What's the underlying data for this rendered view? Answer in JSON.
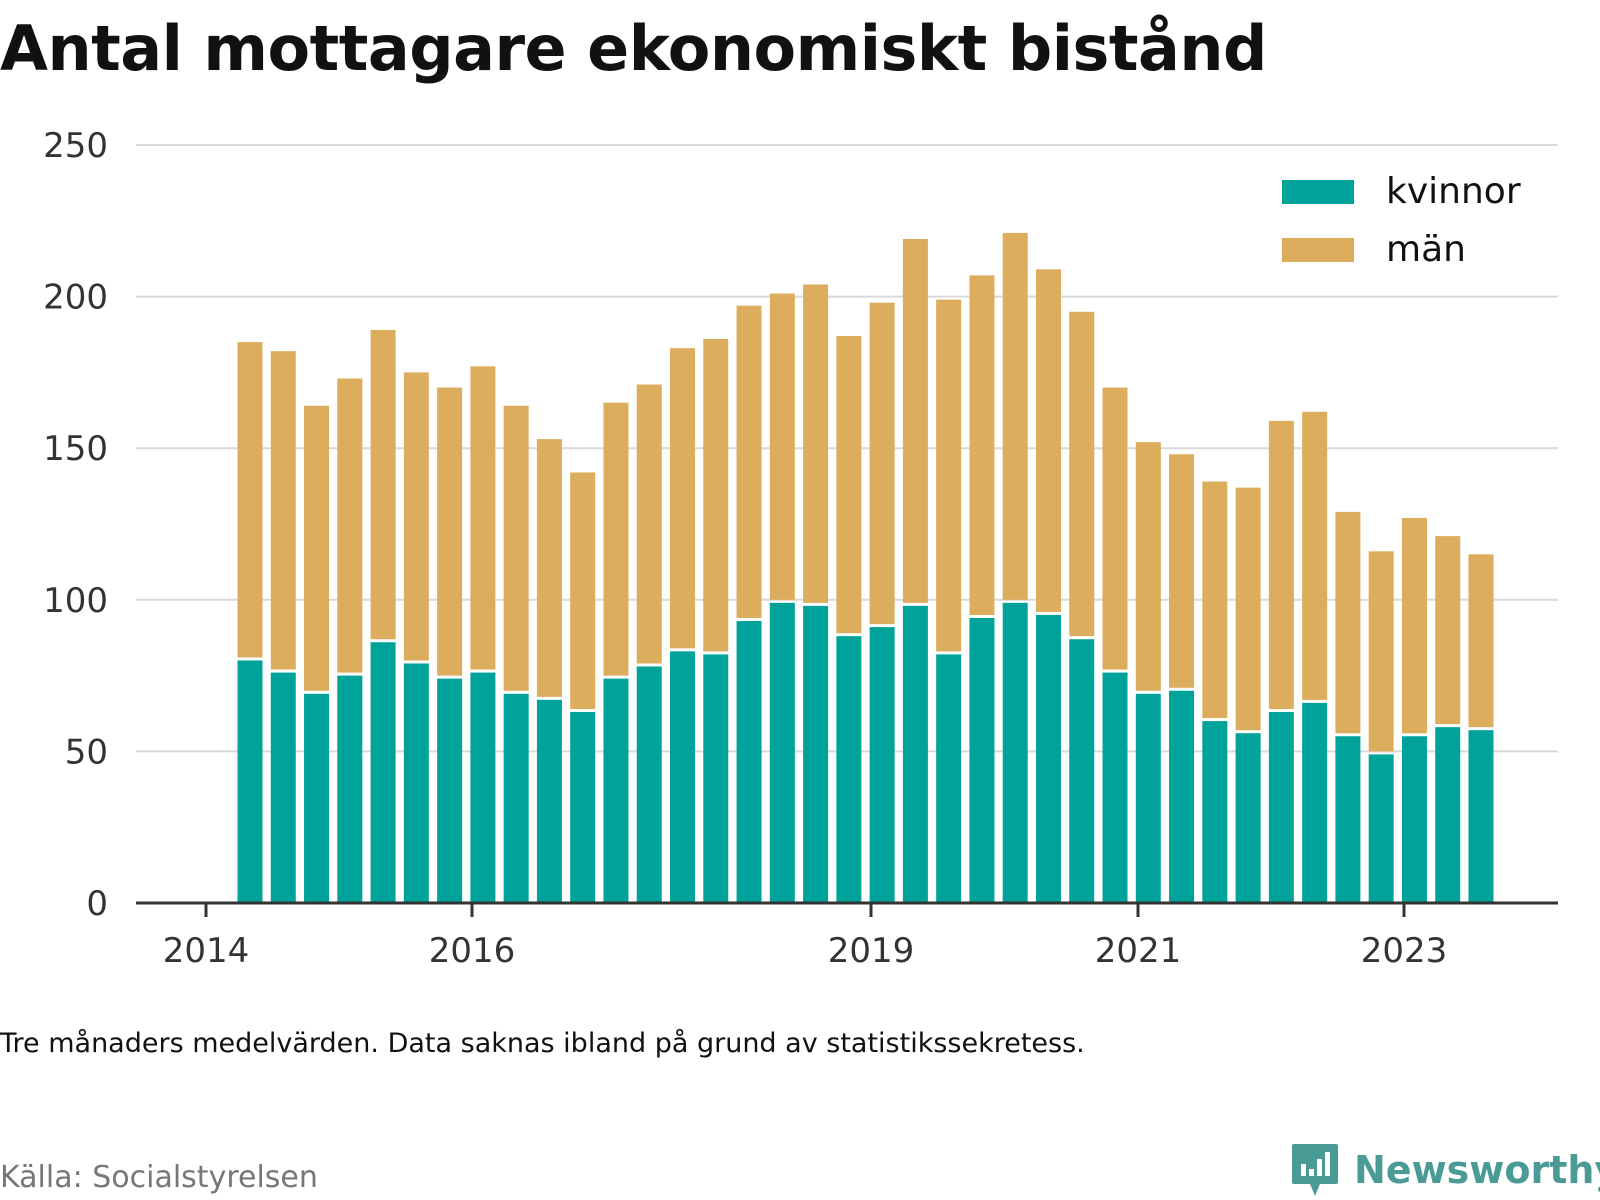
{
  "title": "Antal mottagare ekonomiskt bistånd",
  "note": "Tre månaders medelvärden. Data saknas ibland på grund av statistikssekretess.",
  "source": "Källa: Socialstyrelsen",
  "brand": {
    "name": "Newsworthy",
    "icon": "newsworthy-logo-icon",
    "color": "#4a9b95"
  },
  "colors": {
    "kvinnor": "#00a39a",
    "man": "#dbad5c",
    "grid": "#d9d9d9",
    "axis": "#333333"
  },
  "chart_data": {
    "type": "bar",
    "stacked": true,
    "ylim": [
      0,
      250
    ],
    "yticks": [
      0,
      50,
      100,
      150,
      200,
      250
    ],
    "xticks": [
      "2014",
      "2016",
      "2019",
      "2021",
      "2023"
    ],
    "legend_position": "top-right",
    "grid": true,
    "series": [
      {
        "name": "kvinnor",
        "color": "#00a39a",
        "values": [
          80,
          76,
          69,
          75,
          86,
          79,
          74,
          76,
          69,
          67,
          63,
          74,
          78,
          83,
          82,
          93,
          99,
          98,
          88,
          91,
          98,
          82,
          94,
          99,
          95,
          87,
          76,
          69,
          70,
          60,
          56,
          63,
          66,
          55,
          49,
          55,
          58,
          57
        ]
      },
      {
        "name": "män",
        "color": "#dbad5c",
        "values": [
          105,
          106,
          95,
          98,
          103,
          96,
          96,
          101,
          95,
          86,
          79,
          91,
          93,
          100,
          104,
          104,
          102,
          106,
          99,
          107,
          121,
          117,
          113,
          122,
          114,
          108,
          94,
          83,
          78,
          79,
          81,
          96,
          96,
          74,
          67,
          72,
          63,
          58
        ]
      }
    ]
  }
}
